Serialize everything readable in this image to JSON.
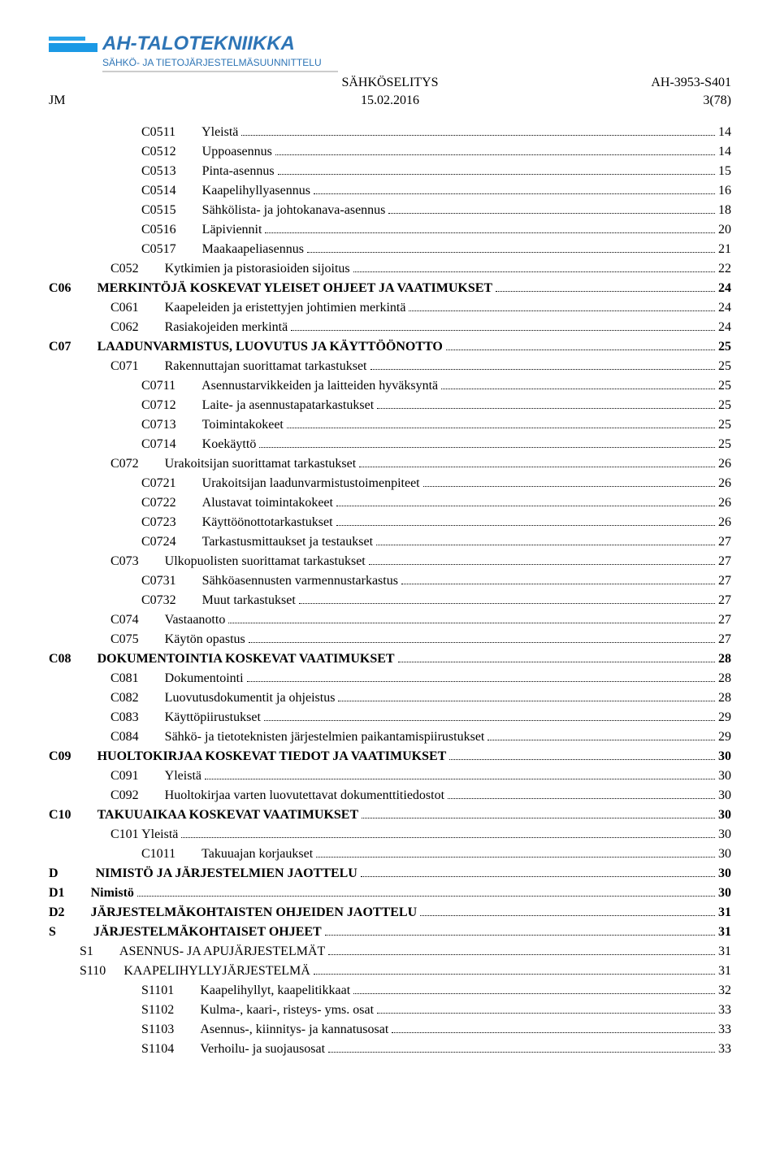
{
  "header": {
    "company_name": "AH-TALOTEKNIIKKA",
    "company_subtitle": "SÄHKÖ- JA TIETOJÄRJESTELMÄSUUNNITTELU",
    "left_code": "JM",
    "center_title": "SÄHKÖSELITYS",
    "center_date": "15.02.2016",
    "right_ref": "AH-3953-S401",
    "right_page": "3(78)"
  },
  "toc": [
    {
      "indent": 3,
      "bold": false,
      "code": "C0511",
      "gap": "med",
      "title": "Yleistä",
      "page": "14"
    },
    {
      "indent": 3,
      "bold": false,
      "code": "C0512",
      "gap": "med",
      "title": "Uppoasennus",
      "page": "14"
    },
    {
      "indent": 3,
      "bold": false,
      "code": "C0513",
      "gap": "med",
      "title": "Pinta-asennus",
      "page": "15"
    },
    {
      "indent": 3,
      "bold": false,
      "code": "C0514",
      "gap": "med",
      "title": "Kaapelihyllyasennus",
      "page": "16"
    },
    {
      "indent": 3,
      "bold": false,
      "code": "C0515",
      "gap": "med",
      "title": "Sähkölista- ja johtokanava-asennus",
      "page": "18"
    },
    {
      "indent": 3,
      "bold": false,
      "code": "C0516",
      "gap": "med",
      "title": "Läpiviennit",
      "page": "20"
    },
    {
      "indent": 3,
      "bold": false,
      "code": "C0517",
      "gap": "med",
      "title": "Maakaapeliasennus",
      "page": "21"
    },
    {
      "indent": 2,
      "bold": false,
      "code": "C052",
      "gap": "med",
      "title": "Kytkimien ja pistorasioiden sijoitus",
      "page": "22"
    },
    {
      "indent": 0,
      "bold": true,
      "code": "C06",
      "gap": "med",
      "title": "MERKINTÖJÄ KOSKEVAT YLEISET OHJEET JA VAATIMUKSET",
      "page": "24"
    },
    {
      "indent": 2,
      "bold": false,
      "code": "C061",
      "gap": "med",
      "title": "Kaapeleiden ja eristettyjen johtimien merkintä",
      "page": "24"
    },
    {
      "indent": 2,
      "bold": false,
      "code": "C062",
      "gap": "med",
      "title": "Rasiakojeiden merkintä",
      "page": "24"
    },
    {
      "indent": 0,
      "bold": true,
      "code": "C07",
      "gap": "med",
      "title": "LAADUNVARMISTUS, LUOVUTUS JA KÄYTTÖÖNOTTO",
      "page": "25"
    },
    {
      "indent": 2,
      "bold": false,
      "code": "C071",
      "gap": "med",
      "title": "Rakennuttajan suorittamat tarkastukset",
      "page": "25"
    },
    {
      "indent": 3,
      "bold": false,
      "code": "C0711",
      "gap": "med",
      "title": "Asennustarvikkeiden ja laitteiden hyväksyntä",
      "page": "25"
    },
    {
      "indent": 3,
      "bold": false,
      "code": "C0712",
      "gap": "med",
      "title": "Laite- ja asennustapatarkastukset",
      "page": "25"
    },
    {
      "indent": 3,
      "bold": false,
      "code": "C0713",
      "gap": "med",
      "title": "Toimintakokeet",
      "page": "25"
    },
    {
      "indent": 3,
      "bold": false,
      "code": "C0714",
      "gap": "med",
      "title": "Koekäyttö",
      "page": "25"
    },
    {
      "indent": 2,
      "bold": false,
      "code": "C072",
      "gap": "med",
      "title": "Urakoitsijan suorittamat tarkastukset",
      "page": "26"
    },
    {
      "indent": 3,
      "bold": false,
      "code": "C0721",
      "gap": "med",
      "title": "Urakoitsijan laadunvarmistustoimenpiteet",
      "page": "26"
    },
    {
      "indent": 3,
      "bold": false,
      "code": "C0722",
      "gap": "med",
      "title": "Alustavat toimintakokeet",
      "page": "26"
    },
    {
      "indent": 3,
      "bold": false,
      "code": "C0723",
      "gap": "med",
      "title": "Käyttöönottotarkastukset",
      "page": "26"
    },
    {
      "indent": 3,
      "bold": false,
      "code": "C0724",
      "gap": "med",
      "title": "Tarkastusmittaukset ja testaukset",
      "page": "27"
    },
    {
      "indent": 2,
      "bold": false,
      "code": "C073",
      "gap": "med",
      "title": "Ulkopuolisten suorittamat tarkastukset",
      "page": "27"
    },
    {
      "indent": 3,
      "bold": false,
      "code": "C0731",
      "gap": "med",
      "title": "Sähköasennusten varmennustarkastus",
      "page": "27"
    },
    {
      "indent": 3,
      "bold": false,
      "code": "C0732",
      "gap": "med",
      "title": "Muut tarkastukset",
      "page": "27"
    },
    {
      "indent": 2,
      "bold": false,
      "code": "C074",
      "gap": "med",
      "title": "Vastaanotto",
      "page": "27"
    },
    {
      "indent": 2,
      "bold": false,
      "code": "C075",
      "gap": "med",
      "title": "Käytön opastus",
      "page": "27"
    },
    {
      "indent": 0,
      "bold": true,
      "code": "C08",
      "gap": "med",
      "title": "DOKUMENTOINTIA KOSKEVAT VAATIMUKSET",
      "page": "28"
    },
    {
      "indent": 2,
      "bold": false,
      "code": "C081",
      "gap": "med",
      "title": "Dokumentointi",
      "page": "28"
    },
    {
      "indent": 2,
      "bold": false,
      "code": "C082",
      "gap": "med",
      "title": "Luovutusdokumentit ja ohjeistus",
      "page": "28"
    },
    {
      "indent": 2,
      "bold": false,
      "code": "C083",
      "gap": "med",
      "title": "Käyttöpiirustukset",
      "page": "29"
    },
    {
      "indent": 2,
      "bold": false,
      "code": "C084",
      "gap": "med",
      "title": "Sähkö- ja tietoteknisten järjestelmien paikantamispiirustukset",
      "page": "29"
    },
    {
      "indent": 0,
      "bold": true,
      "code": "C09",
      "gap": "med",
      "title": "HUOLTOKIRJAA KOSKEVAT TIEDOT JA VAATIMUKSET",
      "page": "30"
    },
    {
      "indent": 2,
      "bold": false,
      "code": "C091",
      "gap": "med",
      "title": "Yleistä",
      "page": "30"
    },
    {
      "indent": 2,
      "bold": false,
      "code": "C092",
      "gap": "med",
      "title": "Huoltokirjaa varten luovutettavat dokumenttitiedostot",
      "page": "30"
    },
    {
      "indent": 0,
      "bold": true,
      "code": "C10",
      "gap": "med",
      "title": "TAKUUAIKAA KOSKEVAT VAATIMUKSET",
      "page": "30"
    },
    {
      "indent": 2,
      "bold": false,
      "code": "C101 Yleistä",
      "gap": "",
      "title": "",
      "page": "30"
    },
    {
      "indent": 3,
      "bold": false,
      "code": "C1011",
      "gap": "med",
      "title": "Takuuajan korjaukset",
      "page": "30"
    },
    {
      "indent": 0,
      "bold": true,
      "code": "D",
      "gap": "large",
      "title": "NIMISTÖ JA JÄRJESTELMIEN JAOTTELU",
      "page": "30"
    },
    {
      "indent": 0,
      "bold": true,
      "code": "D1",
      "gap": "med",
      "title": "Nimistö",
      "page": "30"
    },
    {
      "indent": 0,
      "bold": true,
      "code": "D2",
      "gap": "med",
      "title": "JÄRJESTELMÄKOHTAISTEN OHJEIDEN JAOTTELU",
      "page": "31"
    },
    {
      "indent": 0,
      "bold": true,
      "code": "S",
      "gap": "large",
      "title": "JÄRJESTELMÄKOHTAISET OHJEET",
      "page": "31"
    },
    {
      "indent": 1,
      "bold": false,
      "code": "S1",
      "gap": "med",
      "title": "ASENNUS- JA APUJÄRJESTELMÄT",
      "page": "31"
    },
    {
      "indent": 1,
      "bold": false,
      "code": "S110",
      "gap": "small",
      "title": "KAAPELIHYLLYJÄRJESTELMÄ",
      "page": "31"
    },
    {
      "indent": 3,
      "bold": false,
      "code": "S1101",
      "gap": "med",
      "title": "Kaapelihyllyt, kaapelitikkaat",
      "page": "32"
    },
    {
      "indent": 3,
      "bold": false,
      "code": "S1102",
      "gap": "med",
      "title": "Kulma-, kaari-, risteys- yms. osat",
      "page": "33"
    },
    {
      "indent": 3,
      "bold": false,
      "code": "S1103",
      "gap": "med",
      "title": "Asennus-, kiinnitys- ja kannatusosat",
      "page": "33"
    },
    {
      "indent": 3,
      "bold": false,
      "code": "S1104",
      "gap": "med",
      "title": "Verhoilu- ja suojausosat",
      "page": "33"
    }
  ]
}
